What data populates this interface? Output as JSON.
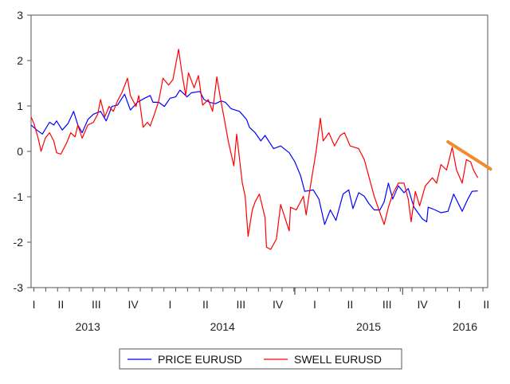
{
  "chart_data": {
    "type": "line",
    "title": "",
    "xlabel": "",
    "ylabel": "",
    "ylim": [
      -3,
      3
    ],
    "xlim": [
      2012.98,
      2016.2
    ],
    "yticks": [
      3,
      2,
      1,
      0,
      -1,
      -2,
      -3
    ],
    "quarter_labels": [
      "I",
      "II",
      "III",
      "IV",
      "I",
      "II",
      "III",
      "IV",
      "I",
      "II",
      "III",
      "IV",
      "I",
      "II"
    ],
    "year_labels": [
      "2013",
      "2014",
      "2015",
      "2016"
    ],
    "grid": false,
    "legend_position": "bottom",
    "series": [
      {
        "name": "PRICE EURUSD",
        "color": "#0000ff",
        "points": [
          [
            2012.98,
            0.58
          ],
          [
            2013.02,
            0.47
          ],
          [
            2013.06,
            0.38
          ],
          [
            2013.11,
            0.64
          ],
          [
            2013.14,
            0.58
          ],
          [
            2013.16,
            0.67
          ],
          [
            2013.2,
            0.47
          ],
          [
            2013.24,
            0.61
          ],
          [
            2013.28,
            0.88
          ],
          [
            2013.31,
            0.58
          ],
          [
            2013.34,
            0.41
          ],
          [
            2013.38,
            0.7
          ],
          [
            2013.42,
            0.82
          ],
          [
            2013.47,
            0.88
          ],
          [
            2013.51,
            0.67
          ],
          [
            2013.55,
            0.99
          ],
          [
            2013.59,
            1.02
          ],
          [
            2013.64,
            1.26
          ],
          [
            2013.68,
            0.91
          ],
          [
            2013.73,
            1.08
          ],
          [
            2013.78,
            1.17
          ],
          [
            2013.82,
            1.23
          ],
          [
            2013.84,
            1.08
          ],
          [
            2013.88,
            1.08
          ],
          [
            2013.92,
            0.99
          ],
          [
            2013.96,
            1.17
          ],
          [
            2014.0,
            1.2
          ],
          [
            2014.03,
            1.35
          ],
          [
            2014.08,
            1.2
          ],
          [
            2014.11,
            1.29
          ],
          [
            2014.17,
            1.32
          ],
          [
            2014.2,
            1.14
          ],
          [
            2014.24,
            1.08
          ],
          [
            2014.28,
            1.05
          ],
          [
            2014.32,
            1.11
          ],
          [
            2014.35,
            1.08
          ],
          [
            2014.39,
            0.94
          ],
          [
            2014.45,
            0.88
          ],
          [
            2014.5,
            0.7
          ],
          [
            2014.52,
            0.53
          ],
          [
            2014.56,
            0.41
          ],
          [
            2014.6,
            0.23
          ],
          [
            2014.63,
            0.35
          ],
          [
            2014.69,
            0.06
          ],
          [
            2014.74,
            0.12
          ],
          [
            2014.8,
            -0.03
          ],
          [
            2014.84,
            -0.23
          ],
          [
            2014.88,
            -0.53
          ],
          [
            2014.91,
            -0.88
          ],
          [
            2014.97,
            -0.85
          ],
          [
            2015.01,
            -1.05
          ],
          [
            2015.05,
            -1.61
          ],
          [
            2015.09,
            -1.29
          ],
          [
            2015.13,
            -1.52
          ],
          [
            2015.18,
            -0.94
          ],
          [
            2015.22,
            -0.85
          ],
          [
            2015.25,
            -1.26
          ],
          [
            2015.29,
            -0.91
          ],
          [
            2015.33,
            -0.99
          ],
          [
            2015.36,
            -1.14
          ],
          [
            2015.4,
            -1.29
          ],
          [
            2015.44,
            -1.29
          ],
          [
            2015.47,
            -1.11
          ],
          [
            2015.5,
            -0.7
          ],
          [
            2015.53,
            -1.05
          ],
          [
            2015.57,
            -0.76
          ],
          [
            2015.61,
            -0.91
          ],
          [
            2015.64,
            -0.82
          ],
          [
            2015.68,
            -1.23
          ],
          [
            2015.74,
            -1.49
          ],
          [
            2015.77,
            -1.55
          ],
          [
            2015.78,
            -1.23
          ],
          [
            2015.83,
            -1.29
          ],
          [
            2015.87,
            -1.35
          ],
          [
            2015.92,
            -1.32
          ],
          [
            2015.96,
            -0.94
          ],
          [
            2016.02,
            -1.32
          ],
          [
            2016.06,
            -1.05
          ],
          [
            2016.09,
            -0.88
          ],
          [
            2016.13,
            -0.87
          ]
        ]
      },
      {
        "name": "SWELL EURUSD",
        "color": "#ff0000",
        "points": [
          [
            2012.98,
            0.76
          ],
          [
            2013.0,
            0.61
          ],
          [
            2013.03,
            0.29
          ],
          [
            2013.05,
            0.0
          ],
          [
            2013.08,
            0.29
          ],
          [
            2013.11,
            0.41
          ],
          [
            2013.14,
            0.23
          ],
          [
            2013.16,
            -0.03
          ],
          [
            2013.19,
            -0.06
          ],
          [
            2013.23,
            0.18
          ],
          [
            2013.26,
            0.41
          ],
          [
            2013.29,
            0.32
          ],
          [
            2013.31,
            0.58
          ],
          [
            2013.34,
            0.29
          ],
          [
            2013.38,
            0.58
          ],
          [
            2013.42,
            0.64
          ],
          [
            2013.45,
            0.82
          ],
          [
            2013.47,
            1.14
          ],
          [
            2013.5,
            0.76
          ],
          [
            2013.53,
            0.99
          ],
          [
            2013.56,
            0.88
          ],
          [
            2013.59,
            1.11
          ],
          [
            2013.62,
            1.29
          ],
          [
            2013.66,
            1.61
          ],
          [
            2013.68,
            1.23
          ],
          [
            2013.72,
            0.99
          ],
          [
            2013.74,
            1.23
          ],
          [
            2013.77,
            0.53
          ],
          [
            2013.8,
            0.64
          ],
          [
            2013.82,
            0.56
          ],
          [
            2013.85,
            0.82
          ],
          [
            2013.88,
            1.11
          ],
          [
            2013.91,
            1.61
          ],
          [
            2013.95,
            1.46
          ],
          [
            2013.98,
            1.58
          ],
          [
            2014.02,
            2.25
          ],
          [
            2014.04,
            1.81
          ],
          [
            2014.07,
            1.23
          ],
          [
            2014.09,
            1.73
          ],
          [
            2014.13,
            1.4
          ],
          [
            2014.16,
            1.67
          ],
          [
            2014.19,
            1.02
          ],
          [
            2014.23,
            1.14
          ],
          [
            2014.26,
            0.88
          ],
          [
            2014.29,
            1.64
          ],
          [
            2014.32,
            1.08
          ],
          [
            2014.34,
            0.76
          ],
          [
            2014.37,
            0.23
          ],
          [
            2014.41,
            -0.32
          ],
          [
            2014.43,
            0.38
          ],
          [
            2014.47,
            -0.7
          ],
          [
            2014.49,
            -0.99
          ],
          [
            2014.51,
            -1.87
          ],
          [
            2014.54,
            -1.29
          ],
          [
            2014.56,
            -1.11
          ],
          [
            2014.59,
            -0.94
          ],
          [
            2014.63,
            -1.46
          ],
          [
            2014.64,
            -2.11
          ],
          [
            2014.67,
            -2.16
          ],
          [
            2014.71,
            -1.93
          ],
          [
            2014.74,
            -1.17
          ],
          [
            2014.8,
            -1.75
          ],
          [
            2014.81,
            -1.23
          ],
          [
            2014.85,
            -1.29
          ],
          [
            2014.9,
            -0.99
          ],
          [
            2014.92,
            -1.4
          ],
          [
            2014.95,
            -0.76
          ],
          [
            2014.99,
            0.0
          ],
          [
            2015.02,
            0.73
          ],
          [
            2015.04,
            0.23
          ],
          [
            2015.08,
            0.41
          ],
          [
            2015.12,
            0.12
          ],
          [
            2015.16,
            0.35
          ],
          [
            2015.19,
            0.41
          ],
          [
            2015.23,
            0.12
          ],
          [
            2015.29,
            0.06
          ],
          [
            2015.33,
            -0.18
          ],
          [
            2015.36,
            -0.53
          ],
          [
            2015.4,
            -0.99
          ],
          [
            2015.44,
            -1.35
          ],
          [
            2015.47,
            -1.61
          ],
          [
            2015.5,
            -1.23
          ],
          [
            2015.53,
            -0.94
          ],
          [
            2015.57,
            -0.7
          ],
          [
            2015.61,
            -0.7
          ],
          [
            2015.64,
            -1.05
          ],
          [
            2015.66,
            -1.55
          ],
          [
            2015.69,
            -0.88
          ],
          [
            2015.72,
            -1.2
          ],
          [
            2015.76,
            -0.76
          ],
          [
            2015.81,
            -0.58
          ],
          [
            2015.84,
            -0.7
          ],
          [
            2015.87,
            -0.29
          ],
          [
            2015.91,
            -0.41
          ],
          [
            2015.95,
            0.09
          ],
          [
            2015.98,
            -0.41
          ],
          [
            2016.02,
            -0.7
          ],
          [
            2016.05,
            -0.18
          ],
          [
            2016.08,
            -0.23
          ],
          [
            2016.1,
            -0.41
          ],
          [
            2016.13,
            -0.58
          ]
        ]
      }
    ],
    "annotation_line": {
      "color": "#f28a30",
      "points": [
        [
          2015.92,
          0.21
        ],
        [
          2016.22,
          -0.39
        ]
      ]
    }
  }
}
